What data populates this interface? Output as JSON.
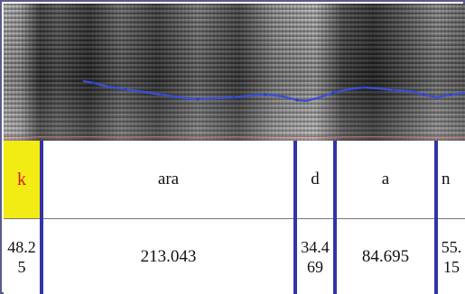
{
  "segments": {
    "labels": [
      "k",
      "ara",
      "d",
      "a",
      "n"
    ],
    "durations": [
      "48.25",
      "213.043",
      "34.469",
      "84.695",
      "55.15"
    ]
  },
  "colors": {
    "highlight_bg": "#f2ec14",
    "highlight_text": "#d11c1c",
    "separator": "#3333a6",
    "pitch_line": "#3a4fd6"
  }
}
